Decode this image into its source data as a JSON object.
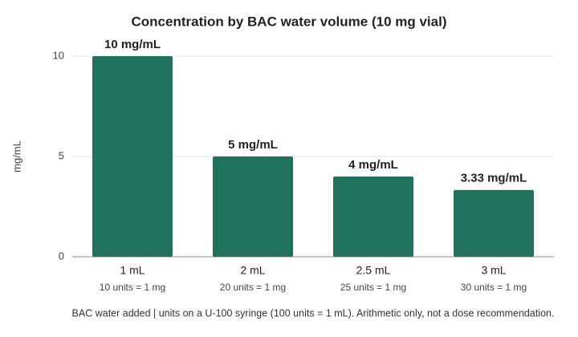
{
  "chart_data": {
    "type": "bar",
    "title": "Concentration by BAC water volume (10 mg vial)",
    "y_label": "mg/mL",
    "categories": [
      "1 mL",
      "2 mL",
      "2.5 mL",
      "3 mL"
    ],
    "category_notes": [
      "10 units = 1 mg",
      "20 units = 1 mg",
      "25 units = 1 mg",
      "30 units = 1 mg"
    ],
    "values": [
      10,
      5,
      4,
      3.33
    ],
    "value_labels": [
      "10 mg/mL",
      "5 mg/mL",
      "4 mg/mL",
      "3.33 mg/mL"
    ],
    "color": "#20725c",
    "ylim": [
      0,
      10
    ],
    "yticks": [
      0,
      5,
      10
    ],
    "grid": true,
    "note": "BAC water added | units on a U-100 syringe (100 units = 1 mL). Arithmetic only, not a dose recommendation."
  }
}
